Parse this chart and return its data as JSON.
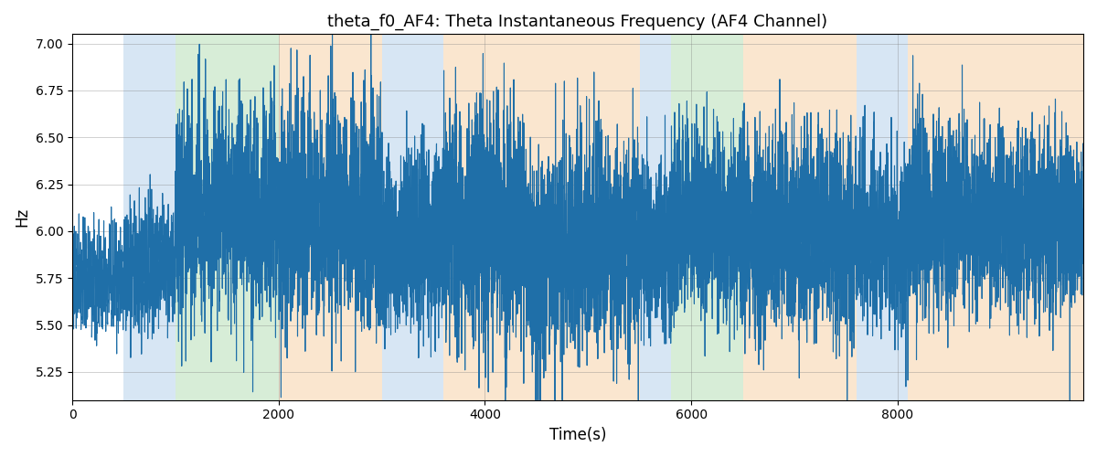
{
  "title": "theta_f0_AF4: Theta Instantaneous Frequency (AF4 Channel)",
  "xlabel": "Time(s)",
  "ylabel": "Hz",
  "ylim": [
    5.1,
    7.05
  ],
  "xlim": [
    0,
    9800
  ],
  "yticks": [
    5.25,
    5.5,
    5.75,
    6.0,
    6.25,
    6.5,
    6.75,
    7.0
  ],
  "xticks": [
    0,
    2000,
    4000,
    6000,
    8000
  ],
  "line_color": "#1f6fa8",
  "line_width": 0.8,
  "background_color": "#ffffff",
  "figsize": [
    12.0,
    5.0
  ],
  "dpi": 100,
  "seed": 42,
  "n_points": 9800,
  "segments": [
    {
      "start": 0,
      "end": 500,
      "color": "none",
      "alpha": 0.0
    },
    {
      "start": 500,
      "end": 1000,
      "color": "#a8c8e8",
      "alpha": 0.45
    },
    {
      "start": 1000,
      "end": 2000,
      "color": "#a8d8a8",
      "alpha": 0.45
    },
    {
      "start": 2000,
      "end": 3000,
      "color": "#f5c896",
      "alpha": 0.45
    },
    {
      "start": 3000,
      "end": 3600,
      "color": "#a8c8e8",
      "alpha": 0.45
    },
    {
      "start": 3600,
      "end": 5500,
      "color": "#f5c896",
      "alpha": 0.45
    },
    {
      "start": 5500,
      "end": 5800,
      "color": "#a8c8e8",
      "alpha": 0.45
    },
    {
      "start": 5800,
      "end": 6500,
      "color": "#a8d8a8",
      "alpha": 0.45
    },
    {
      "start": 6500,
      "end": 7600,
      "color": "#f5c896",
      "alpha": 0.45
    },
    {
      "start": 7600,
      "end": 8100,
      "color": "#a8c8e8",
      "alpha": 0.45
    },
    {
      "start": 8100,
      "end": 9800,
      "color": "#f5c896",
      "alpha": 0.45
    }
  ]
}
